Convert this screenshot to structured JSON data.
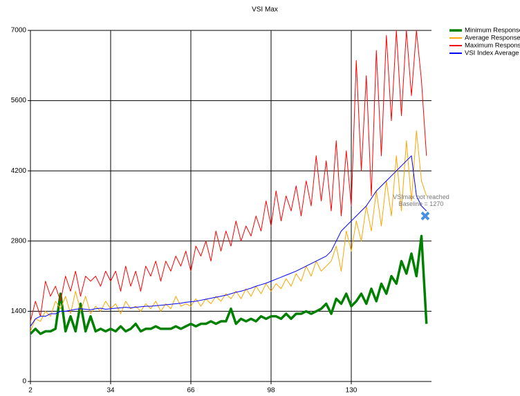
{
  "chart_data": {
    "type": "line",
    "title": "VSI Max",
    "x": [
      2,
      4,
      6,
      8,
      10,
      12,
      14,
      16,
      18,
      20,
      22,
      24,
      26,
      28,
      30,
      32,
      34,
      36,
      38,
      40,
      42,
      44,
      46,
      48,
      50,
      52,
      54,
      56,
      58,
      60,
      62,
      64,
      66,
      68,
      70,
      72,
      74,
      76,
      78,
      80,
      82,
      84,
      86,
      88,
      90,
      92,
      94,
      96,
      98,
      100,
      102,
      104,
      106,
      108,
      110,
      112,
      114,
      116,
      118,
      120,
      122,
      124,
      126,
      128,
      130,
      132,
      134,
      136,
      138,
      140,
      142,
      144,
      146,
      148,
      150,
      152,
      154,
      156,
      158,
      160
    ],
    "series": [
      {
        "name": "Minimum Response",
        "color": "#008000",
        "width": 3.5,
        "values": [
          950,
          1050,
          950,
          1000,
          1000,
          1050,
          1750,
          1000,
          1300,
          1000,
          1550,
          1000,
          1300,
          1000,
          1050,
          1000,
          1050,
          1000,
          1100,
          1000,
          1050,
          1150,
          1000,
          1050,
          1050,
          1100,
          1050,
          1050,
          1050,
          1100,
          1050,
          1100,
          1150,
          1100,
          1150,
          1150,
          1200,
          1150,
          1200,
          1200,
          1450,
          1150,
          1250,
          1200,
          1250,
          1200,
          1300,
          1250,
          1300,
          1300,
          1250,
          1350,
          1250,
          1350,
          1350,
          1400,
          1350,
          1400,
          1450,
          1550,
          1350,
          1650,
          1550,
          1750,
          1500,
          1600,
          1750,
          1550,
          1850,
          1600,
          1950,
          1750,
          2100,
          1950,
          2400,
          2150,
          2550,
          2100,
          2900,
          1150
        ]
      },
      {
        "name": "Average Response",
        "color": "#ffa500",
        "width": 1,
        "values": [
          1000,
          1250,
          1200,
          1400,
          1300,
          1600,
          1450,
          1700,
          1350,
          1800,
          1400,
          1700,
          1350,
          1500,
          1400,
          1600,
          1450,
          1550,
          1350,
          1600,
          1450,
          1500,
          1400,
          1550,
          1450,
          1600,
          1400,
          1550,
          1450,
          1700,
          1500,
          1550,
          1500,
          1650,
          1500,
          1650,
          1550,
          1700,
          1600,
          1750,
          1650,
          1800,
          1650,
          1850,
          1700,
          1900,
          1750,
          1950,
          1800,
          1950,
          1850,
          2050,
          1900,
          2150,
          2000,
          2300,
          2100,
          2400,
          2200,
          2300,
          2400,
          2700,
          2200,
          3000,
          2600,
          3200,
          2800,
          3500,
          3000,
          3800,
          3100,
          4000,
          3300,
          4500,
          3400,
          4800,
          3600,
          5000,
          4000,
          3700
        ]
      },
      {
        "name": "Maximum Response",
        "color": "#ff0000",
        "width": 1,
        "values": [
          1200,
          1600,
          1300,
          2000,
          1700,
          1900,
          1600,
          2100,
          1800,
          2200,
          1700,
          2100,
          2000,
          2100,
          1900,
          2200,
          2000,
          2200,
          1800,
          2300,
          1900,
          2200,
          1800,
          2300,
          2100,
          2400,
          2000,
          2400,
          2200,
          2500,
          2300,
          2600,
          2200,
          2700,
          2500,
          2800,
          2400,
          3000,
          2600,
          3000,
          2700,
          3200,
          2800,
          3100,
          2900,
          3300,
          3000,
          3600,
          3100,
          3800,
          3200,
          3700,
          3400,
          3900,
          3300,
          4000,
          3500,
          4500,
          3600,
          4400,
          3400,
          4800,
          3300,
          4600,
          3500,
          6400,
          4200,
          6100,
          3700,
          6600,
          4500,
          6900,
          5200,
          7000,
          5300,
          7000,
          5700,
          7000,
          6000,
          4500
        ]
      },
      {
        "name": "VSI Index Average",
        "color": "#0000ff",
        "width": 1,
        "values": [
          1100,
          1250,
          1300,
          1300,
          1350,
          1350,
          1400,
          1400,
          1420,
          1440,
          1450,
          1440,
          1430,
          1450,
          1460,
          1440,
          1450,
          1460,
          1470,
          1480,
          1470,
          1480,
          1490,
          1500,
          1500,
          1510,
          1520,
          1530,
          1540,
          1550,
          1560,
          1580,
          1590,
          1600,
          1620,
          1640,
          1660,
          1680,
          1700,
          1720,
          1750,
          1780,
          1800,
          1830,
          1860,
          1900,
          1930,
          1960,
          2000,
          2040,
          2080,
          2120,
          2160,
          2200,
          2250,
          2300,
          2350,
          2400,
          2450,
          2500,
          2600,
          2800,
          3000,
          3100,
          3200,
          3300,
          3400,
          3500,
          3650,
          3800,
          3900,
          4000,
          4100,
          4200,
          4300,
          4400,
          4500,
          3700,
          3500,
          3400
        ]
      }
    ],
    "annotation": {
      "text": [
        "VSImax not reached",
        "Baseline = 1270"
      ],
      "x": 159.5,
      "y": 3300,
      "color": "#4a90e2"
    },
    "xlim": [
      2,
      162
    ],
    "ylim": [
      0,
      7000
    ],
    "xticks": [
      2,
      34,
      66,
      98,
      130
    ],
    "yticks": [
      0,
      1400,
      2800,
      4200,
      5600,
      7000
    ],
    "grid": true,
    "legend": "right"
  }
}
